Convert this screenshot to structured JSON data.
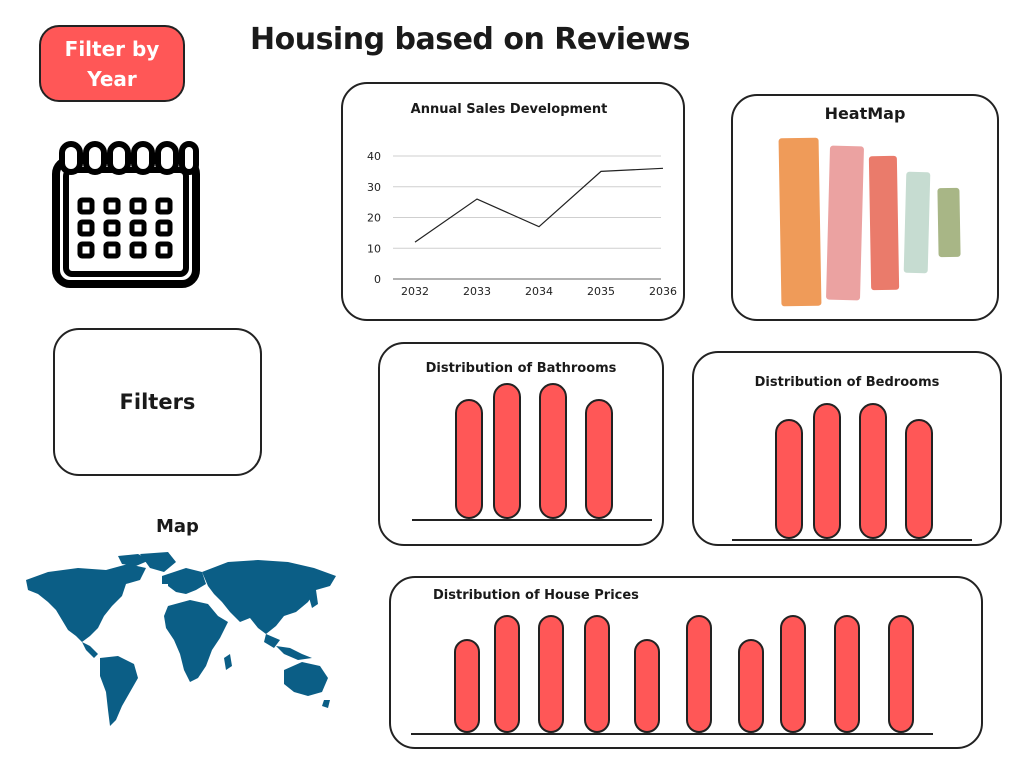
{
  "header": {
    "filter_button_label": "Filter by Year",
    "title": "Housing based on Reviews"
  },
  "filters_panel": {
    "label": "Filters"
  },
  "map": {
    "label": "Map",
    "fill_color": "#0b5e86"
  },
  "accent_color": "#ff5757",
  "icons": {
    "calendar": "calendar-icon",
    "world_map": "world-map-icon"
  },
  "chart_data": [
    {
      "type": "line",
      "title": "Annual Sales Development",
      "categories": [
        "2032",
        "2033",
        "2034",
        "2035",
        "2036"
      ],
      "values": [
        12,
        26,
        17,
        35,
        36
      ],
      "ylim": [
        0,
        40
      ],
      "yticks": [
        "0",
        "10",
        "20",
        "30",
        "40"
      ],
      "grid": true
    },
    {
      "type": "heatmap",
      "title": "HeatMap",
      "colors": [
        "#ef9b59",
        "#eba2a1",
        "#ea7b6b",
        "#c6dcd1",
        "#a8b686"
      ]
    },
    {
      "type": "bar",
      "title": "Distribution of Bathrooms",
      "values": [
        118,
        134,
        134,
        118
      ],
      "color": "#ff5757"
    },
    {
      "type": "bar",
      "title": "Distribution of Bedrooms",
      "values": [
        118,
        134,
        134,
        118
      ],
      "color": "#ff5757"
    },
    {
      "type": "bar",
      "title": "Distribution of House Prices",
      "values": [
        92,
        116,
        116,
        116,
        92,
        116,
        92,
        116,
        116,
        116
      ],
      "color": "#ff5757"
    }
  ]
}
